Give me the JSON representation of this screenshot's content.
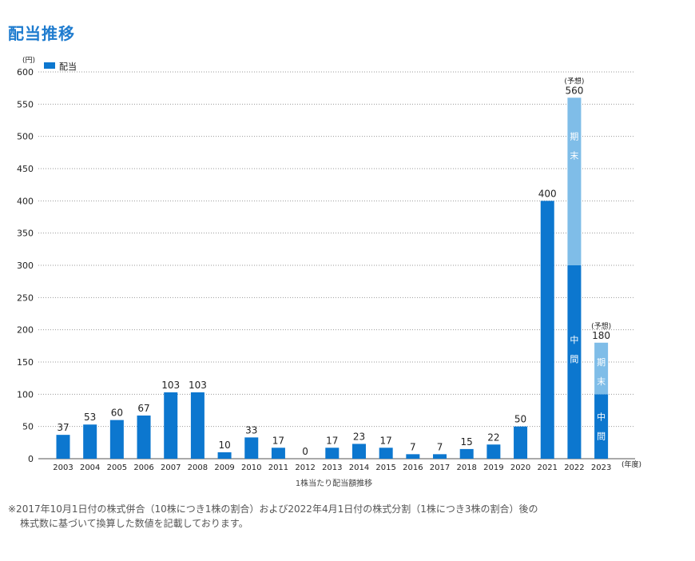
{
  "page": {
    "title": "配当推移"
  },
  "chart_data": {
    "type": "bar",
    "title": "配当推移",
    "caption": "1株当たり配当額推移",
    "unit_label": "(円)",
    "x_unit_label": "(年度)",
    "legend": [
      {
        "label": "配当",
        "color": "#0c77cf"
      }
    ],
    "ylim": [
      0,
      600
    ],
    "yticks": [
      0,
      50,
      100,
      150,
      200,
      250,
      300,
      350,
      400,
      450,
      500,
      550,
      600
    ],
    "categories": [
      "2003",
      "2004",
      "2005",
      "2006",
      "2007",
      "2008",
      "2009",
      "2010",
      "2011",
      "2012",
      "2013",
      "2014",
      "2015",
      "2016",
      "2017",
      "2018",
      "2019",
      "2020",
      "2021",
      "2022",
      "2023"
    ],
    "values": [
      37,
      53,
      60,
      67,
      103,
      103,
      10,
      33,
      17,
      0,
      17,
      23,
      17,
      7,
      7,
      15,
      22,
      50,
      400,
      560,
      180
    ],
    "stacked": [
      {
        "year": "2022",
        "interim": 300,
        "final": 260,
        "total": 560,
        "forecast_label": "(予想)",
        "interim_label": "中間",
        "final_label": "期末"
      },
      {
        "year": "2023",
        "interim": 100,
        "final": 80,
        "total": 180,
        "forecast_label": "(予想)",
        "interim_label": "中間",
        "final_label": "期末"
      }
    ],
    "colors": {
      "bar": "#0c77cf",
      "final": "#7fbde8",
      "grid": "#999999"
    }
  },
  "footnote": {
    "line1": "※2017年10月1日付の株式併合（10株につき1株の割合）および2022年4月1日付の株式分割（1株につき3株の割合）後の",
    "line2": "株式数に基づいて換算した数値を記載しております。"
  }
}
